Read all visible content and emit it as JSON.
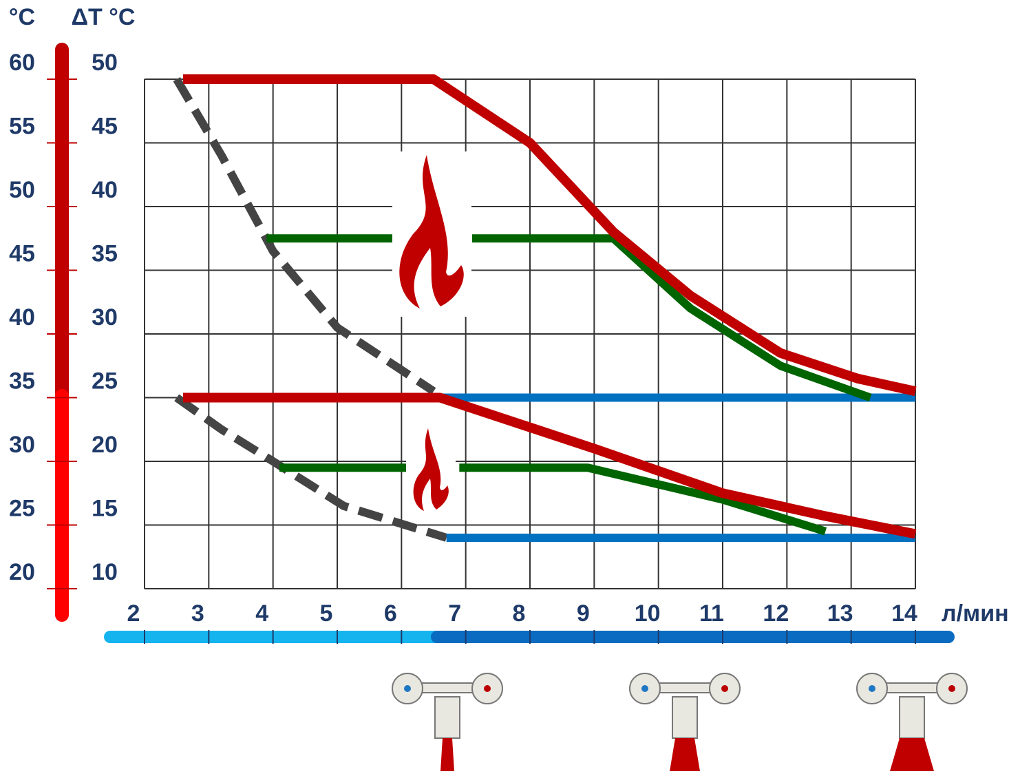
{
  "chart_data": {
    "type": "line",
    "x_label": "л/мин",
    "y_label": "ΔT °C",
    "y2_label": "°C",
    "xlim": [
      2,
      14
    ],
    "xticks": [
      2,
      3,
      4,
      5,
      6,
      7,
      8,
      9,
      10,
      11,
      12,
      13,
      14
    ],
    "ylim": [
      10,
      50
    ],
    "yticks": [
      10,
      15,
      20,
      25,
      30,
      35,
      40,
      45,
      50
    ],
    "y2lim": [
      20,
      60
    ],
    "y2ticks": [
      20,
      25,
      30,
      35,
      40,
      45,
      50,
      55,
      60
    ],
    "grid": true,
    "series": [
      {
        "color": "#444444",
        "style": "dashed",
        "x": [
          2.5,
          3.2,
          4,
          5,
          6.5
        ],
        "values": [
          50,
          44,
          36.5,
          30.5,
          25.5
        ]
      },
      {
        "color": "#444444",
        "style": "dashed",
        "x": [
          2.5,
          3.2,
          4,
          5.1,
          6.7
        ],
        "values": [
          25,
          22.5,
          20,
          16.5,
          14
        ]
      },
      {
        "color": "#0070c0",
        "style": "solid",
        "x": [
          6.5,
          14
        ],
        "values": [
          25,
          25
        ]
      },
      {
        "color": "#0070c0",
        "style": "solid",
        "x": [
          6.7,
          14
        ],
        "values": [
          14,
          14
        ]
      },
      {
        "color": "#006400",
        "style": "solid",
        "x": [
          3.9,
          5.9,
          6.5,
          7.1,
          9.3,
          10.5,
          11.9,
          13.3
        ],
        "values": [
          37.5,
          37.5,
          null,
          37.5,
          37.5,
          32,
          27.5,
          25
        ]
      },
      {
        "color": "#006400",
        "style": "solid",
        "x": [
          4.1,
          6.1,
          6.5,
          6.9,
          8.9,
          11,
          12.6
        ],
        "values": [
          19.5,
          19.5,
          null,
          19.5,
          19.5,
          17,
          14.5
        ]
      },
      {
        "color": "#c00000",
        "style": "solid",
        "x": [
          2.6,
          6.5,
          8,
          9.3,
          10.5,
          11.9,
          13.1,
          14
        ],
        "values": [
          50,
          50,
          45,
          38,
          33,
          28.5,
          26.5,
          25.5
        ]
      },
      {
        "color": "#c00000",
        "style": "solid",
        "x": [
          2.6,
          6.6,
          9,
          11,
          12.6,
          14
        ],
        "values": [
          25,
          25,
          21,
          17.5,
          15.7,
          14.3
        ]
      }
    ]
  }
}
